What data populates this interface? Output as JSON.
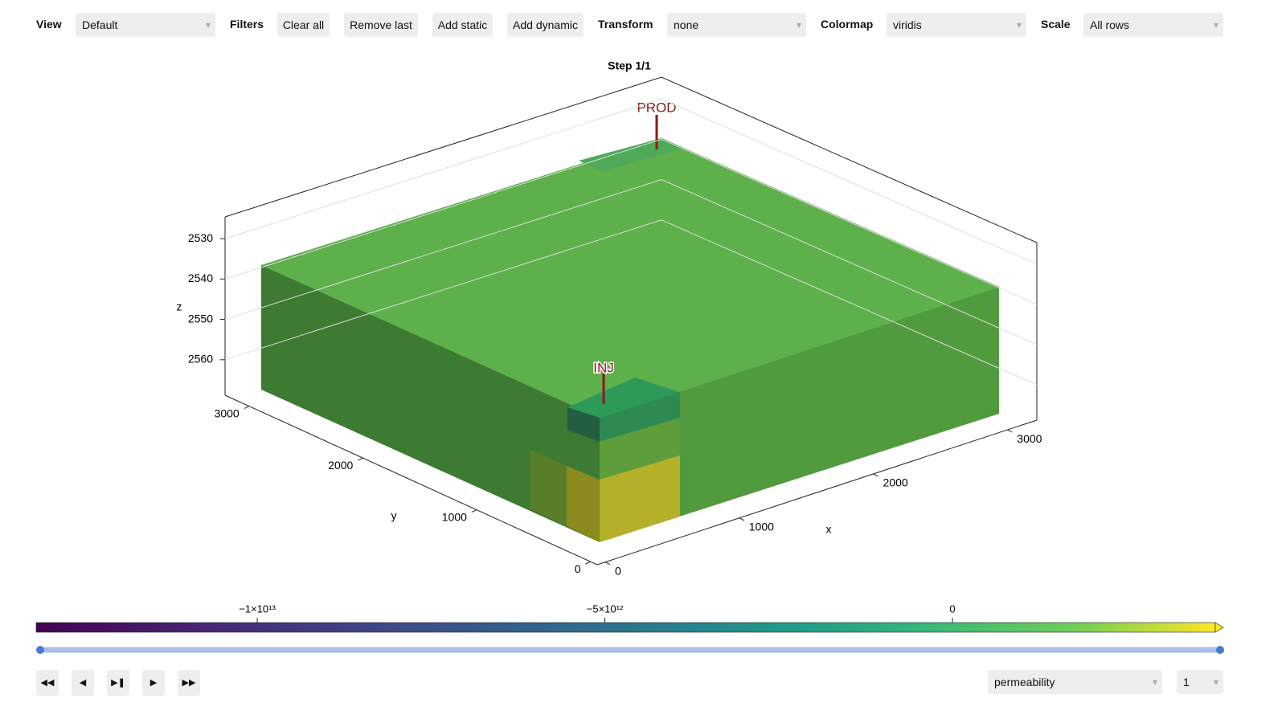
{
  "toolbar": {
    "view": {
      "label": "View",
      "value": "Default"
    },
    "filters": {
      "label": "Filters",
      "buttons": [
        "Clear all",
        "Remove last",
        "Add static",
        "Add dynamic"
      ]
    },
    "transform": {
      "label": "Transform",
      "value": "none"
    },
    "colormap": {
      "label": "Colormap",
      "value": "viridis"
    },
    "scale": {
      "label": "Scale",
      "value": "All rows"
    }
  },
  "plot": {
    "title": "Step 1/1",
    "axes": {
      "x": {
        "label": "x",
        "lim": [
          -60,
          3220
        ],
        "ticks": [
          0,
          1000,
          2000,
          3000
        ]
      },
      "y": {
        "label": "y",
        "lim": [
          -60,
          3210
        ],
        "ticks": [
          0,
          1000,
          2000,
          3000
        ]
      },
      "z": {
        "label": "z",
        "lim": [
          2524.6,
          2568.8
        ],
        "reversed": true,
        "ticks": [
          2530,
          2540,
          2550,
          2560
        ]
      }
    },
    "wells": [
      {
        "label": "PROD"
      },
      {
        "label": "INJ"
      }
    ],
    "colorbar": {
      "lim": [
        -13180000000000.0,
        3780000000000.0
      ],
      "ticks": [
        {
          "value": -10000000000000.0,
          "label": "−1×10¹³"
        },
        {
          "value": -5000000000000.0,
          "label": "−5×10¹²"
        },
        0
      ]
    }
  },
  "controls": {
    "variable": "permeability",
    "step": "1"
  }
}
